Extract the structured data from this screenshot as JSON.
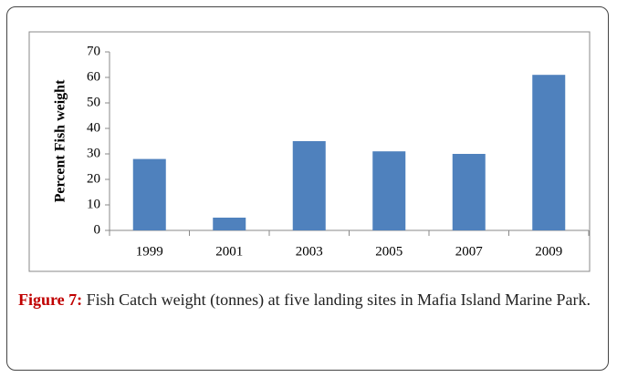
{
  "chart_data": {
    "type": "bar",
    "ylabel": "Percent Fish weight",
    "categories": [
      "1999",
      "2001",
      "2003",
      "2005",
      "2007",
      "2009"
    ],
    "values": [
      28,
      5,
      35,
      31,
      30,
      61
    ],
    "color": "#4f81bd",
    "ylim": [
      0,
      70
    ],
    "yticks": [
      0,
      10,
      20,
      30,
      40,
      50,
      60,
      70
    ],
    "grid": false
  },
  "caption": {
    "label": "Figure 7:",
    "text": "Fish Catch weight (tonnes) at five landing sites in Mafia Island Marine Park."
  }
}
